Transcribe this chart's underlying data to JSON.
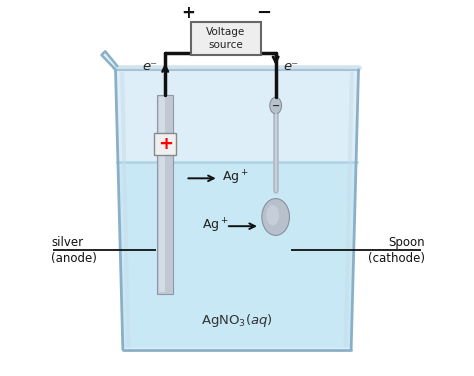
{
  "bg_color": "#ffffff",
  "wire_color": "#111111",
  "labels": {
    "voltage_source": "Voltage\nsource",
    "plus_terminal": "+",
    "minus_terminal": "−",
    "e_left": "e⁻",
    "e_right": "e⁻",
    "ag_top": "Ag⁺",
    "ag_bottom": "Ag⁺",
    "solution": "AgNO₃(aq)",
    "silver": "silver\n(anode)",
    "spoon": "Spoon\n(cathode)",
    "anode_plus": "+"
  },
  "figsize": [
    4.74,
    3.76
  ],
  "dpi": 100
}
